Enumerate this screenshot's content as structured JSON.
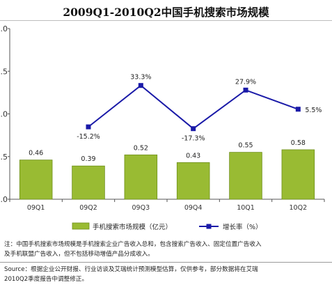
{
  "chart_data": {
    "type": "bar",
    "title": "2009Q1-2010Q2中国手机搜索市场规模",
    "categories": [
      "09Q1",
      "09Q2",
      "09Q3",
      "09Q4",
      "10Q1",
      "10Q2"
    ],
    "series": [
      {
        "name": "手机搜索市场规模（亿元）",
        "type": "bar",
        "axis": "left",
        "values": [
          0.46,
          0.39,
          0.52,
          0.43,
          0.55,
          0.58
        ],
        "labels": [
          "0.46",
          "0.39",
          "0.52",
          "0.43",
          "0.55",
          "0.58"
        ]
      },
      {
        "name": "增长率（%）",
        "type": "line",
        "axis": "left",
        "values": [
          null,
          -15.2,
          33.3,
          -17.3,
          27.9,
          5.5
        ],
        "labels": [
          "",
          "-15.2%",
          "33.3%",
          "-17.3%",
          "27.9%",
          "5.5%"
        ]
      }
    ],
    "yticks": [
      "0.0",
      "0.5",
      "1.0",
      "1.5",
      "2.0"
    ],
    "ylim": [
      0,
      2.0
    ],
    "grid": false,
    "legend": "bottom",
    "colors": {
      "bar": "#99bb33",
      "bar_border": "#6f8f1c",
      "line": "#1a1aa8"
    }
  },
  "notes": {
    "note_line1": "注：中国手机搜索市场规模是手机搜索企业广告收入总和，包含搜索广告收入、固定位置广告收入",
    "note_line2": "及手机联盟广告收入，但不包括移动增值产品分成收入。",
    "source_line1": "Source：根据企业公开财报、行业访谈及艾瑞统计预测模型估算，仅供参考，部分数据将在艾瑞",
    "source_line2": "2010Q2季度报告中调整修正。"
  }
}
